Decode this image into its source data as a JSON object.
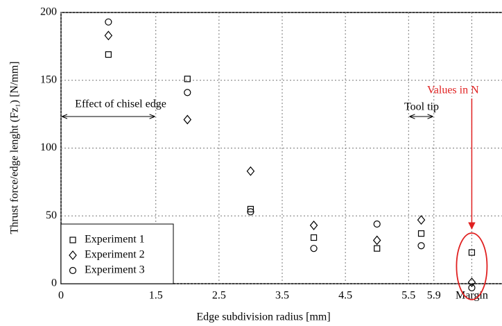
{
  "chart_data": {
    "type": "scatter",
    "x_label": "Edge subdivision radius [mm]",
    "y_label": "Thrust force/edge lenght (Fz₁) [N/mm]",
    "x": [
      0.75,
      2,
      3,
      4,
      5,
      5.7,
      6.5
    ],
    "series": [
      {
        "name": "Experiment 1",
        "marker": "square",
        "color": "#000000",
        "values": [
          169,
          151,
          55,
          34,
          26,
          37,
          23
        ]
      },
      {
        "name": "Experiment 2",
        "marker": "diamond",
        "color": "#000000",
        "values": [
          183,
          121,
          83,
          43,
          32,
          47,
          1
        ]
      },
      {
        "name": "Experiment 3",
        "marker": "circle",
        "color": "#000000",
        "values": [
          193,
          141,
          53,
          26,
          44,
          28,
          -3
        ]
      }
    ],
    "xlim": [
      0,
      7
    ],
    "ylim": [
      0,
      200
    ],
    "xticks": [
      0,
      1.5,
      2.5,
      3.5,
      4.5,
      5.5,
      5.9,
      {
        "value": 6.5,
        "label": "Margin"
      }
    ],
    "yticks": [
      0,
      50,
      100,
      150,
      200
    ],
    "grid": true,
    "legend": "lower-left",
    "annotations": [
      "Effect of chisel edge",
      "Tool tip",
      "Values in N"
    ],
    "annotation_color": "#e02020"
  }
}
